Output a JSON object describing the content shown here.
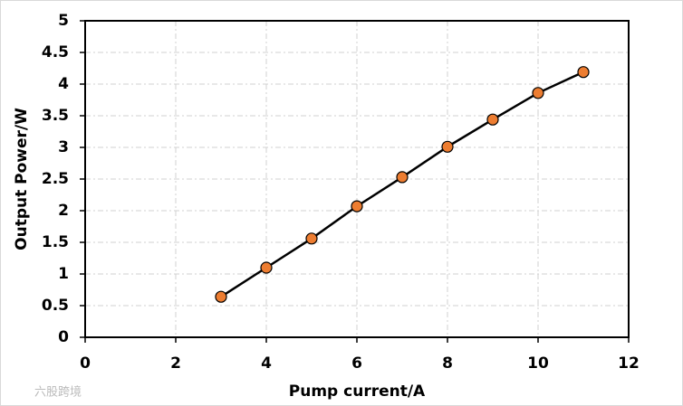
{
  "chart_data": {
    "type": "line",
    "x_label": "Pump current/A",
    "y_label": "Output Power/W",
    "x": [
      3,
      4,
      5,
      6,
      7,
      8,
      9,
      10,
      11
    ],
    "series": [
      {
        "name": "Output Power",
        "color": "#ed7d31",
        "values": [
          0.64,
          1.1,
          1.56,
          2.07,
          2.53,
          3.01,
          3.44,
          3.86,
          4.19
        ]
      }
    ],
    "xlim": [
      0,
      12
    ],
    "xticks": [
      0,
      2,
      4,
      6,
      8,
      10,
      12
    ],
    "ylim": [
      0,
      5
    ],
    "yticks": [
      0,
      0.5,
      1,
      1.5,
      2,
      2.5,
      3,
      3.5,
      4,
      4.5,
      5
    ],
    "grid": true,
    "watermark": "六股跨境"
  }
}
